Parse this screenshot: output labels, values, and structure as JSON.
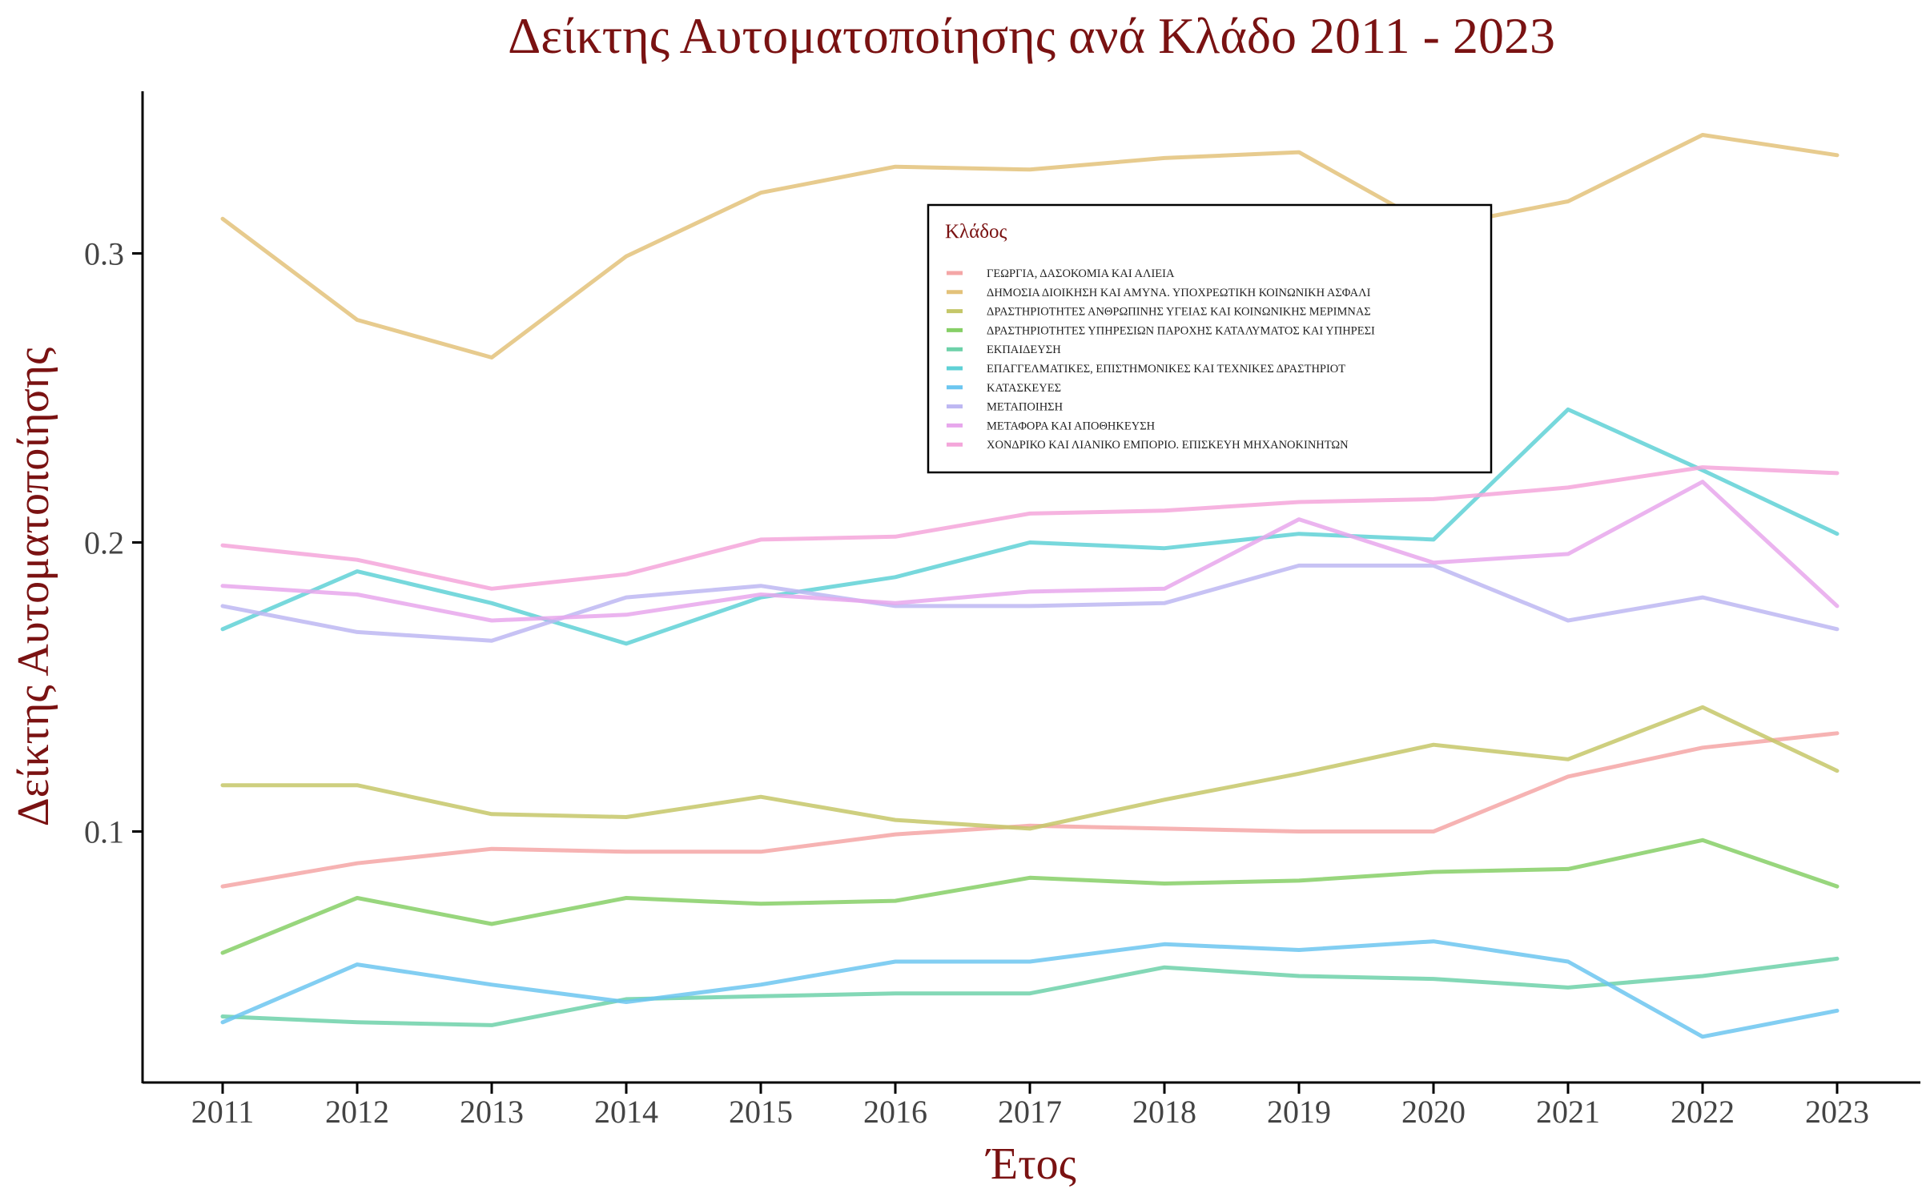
{
  "chart_data": {
    "type": "line",
    "title": "Δείκτης Αυτοματοποίησης ανά Κλάδο 2011 - 2023",
    "xlabel": "Έτος",
    "ylabel": "Δείκτης Αυτοματοποίησης",
    "x": [
      2011,
      2012,
      2013,
      2014,
      2015,
      2016,
      2017,
      2018,
      2019,
      2020,
      2021,
      2022,
      2023
    ],
    "ylim": [
      0.013,
      0.355
    ],
    "yticks": [
      0.1,
      0.2,
      0.3
    ],
    "ytick_labels": [
      "0.1",
      "0.2",
      "0.3"
    ],
    "grid": false,
    "legend": {
      "title": "Κλάδος",
      "position": "top-center"
    },
    "series": [
      {
        "name": "ΓΕΩΡΓΙΑ, ΔΑΣΟΚΟΜΙΑ ΚΑΙ ΑΛΙΕΙΑ",
        "color": "#f4a6a6",
        "values": [
          0.081,
          0.089,
          0.094,
          0.093,
          0.093,
          0.099,
          0.102,
          0.101,
          0.1,
          0.1,
          0.119,
          0.129,
          0.134
        ]
      },
      {
        "name": "ΔΗΜΟΣΙΑ ΔΙΟΙΚΗΣΗ ΚΑΙ ΑΜΥΝΑ. ΥΠΟΧΡΕΩΤΙΚΗ ΚΟΙΝΩΝΙΚΗ ΑΣΦΑΛΙ",
        "color": "#e3c27a",
        "values": [
          0.312,
          0.277,
          0.264,
          0.299,
          0.321,
          0.33,
          0.329,
          0.333,
          0.335,
          0.309,
          0.318,
          0.341,
          0.334
        ]
      },
      {
        "name": "ΔΡΑΣΤΗΡΙΟΤΗΤΕΣ ΑΝΘΡΩΠΙΝΗΣ ΥΓΕΙΑΣ ΚΑΙ ΚΟΙΝΩΝΙΚΗΣ ΜΕΡΙΜΝΑΣ",
        "color": "#c5c769",
        "values": [
          0.116,
          0.116,
          0.106,
          0.105,
          0.112,
          0.104,
          0.101,
          0.111,
          0.12,
          0.13,
          0.125,
          0.143,
          0.121
        ]
      },
      {
        "name": "ΔΡΑΣΤΗΡΙΟΤΗΤΕΣ ΥΠΗΡΕΣΙΩΝ ΠΑΡΟΧΗΣ ΚΑΤΑΛΥΜΑΤΟΣ ΚΑΙ ΥΠΗΡΕΣΙ",
        "color": "#86cf66",
        "values": [
          0.058,
          0.077,
          0.068,
          0.077,
          0.075,
          0.076,
          0.084,
          0.082,
          0.083,
          0.086,
          0.087,
          0.097,
          0.081
        ]
      },
      {
        "name": "ΕΚΠΑΙΔΕΥΣΗ",
        "color": "#6dd1a9",
        "values": [
          0.036,
          0.034,
          0.033,
          0.042,
          0.043,
          0.044,
          0.044,
          0.053,
          0.05,
          0.049,
          0.046,
          0.05,
          0.056
        ]
      },
      {
        "name": "ΕΠΑΓΓΕΛΜΑΤΙΚΕΣ, ΕΠΙΣΤΗΜΟΝΙΚΕΣ ΚΑΙ ΤΕΧΝΙΚΕΣ ΔΡΑΣΤΗΡΙΟΤ",
        "color": "#5fd1d6",
        "values": [
          0.17,
          0.19,
          0.179,
          0.165,
          0.181,
          0.188,
          0.2,
          0.198,
          0.203,
          0.201,
          0.246,
          0.225,
          0.203
        ]
      },
      {
        "name": "ΚΑΤΑΣΚΕΥΕΣ",
        "color": "#6cc6f0",
        "values": [
          0.034,
          0.054,
          0.047,
          0.041,
          0.047,
          0.055,
          0.055,
          0.061,
          0.059,
          0.062,
          0.055,
          0.029,
          0.038
        ]
      },
      {
        "name": "ΜΕΤΑΠΟΙΗΣΗ",
        "color": "#bdb7f2",
        "values": [
          0.178,
          0.169,
          0.166,
          0.181,
          0.185,
          0.178,
          0.178,
          0.179,
          0.192,
          0.192,
          0.173,
          0.181,
          0.17
        ]
      },
      {
        "name": "ΜΕΤΑΦΟΡΑ ΚΑΙ ΑΠΟΘΗΚΕΥΣΗ",
        "color": "#e7a7ec",
        "values": [
          0.185,
          0.182,
          0.173,
          0.175,
          0.182,
          0.179,
          0.183,
          0.184,
          0.208,
          0.193,
          0.196,
          0.221,
          0.178
        ]
      },
      {
        "name": "ΧΟΝΔΡΙΚΟ ΚΑΙ ΛΙΑΝΙΚΟ ΕΜΠΟΡΙΟ. ΕΠΙΣΚΕΥΗ ΜΗΧΑΝΟΚΙΝΗΤΩΝ",
        "color": "#f4a6da",
        "values": [
          0.199,
          0.194,
          0.184,
          0.189,
          0.201,
          0.202,
          0.21,
          0.211,
          0.214,
          0.215,
          0.219,
          0.226,
          0.224
        ]
      }
    ]
  }
}
